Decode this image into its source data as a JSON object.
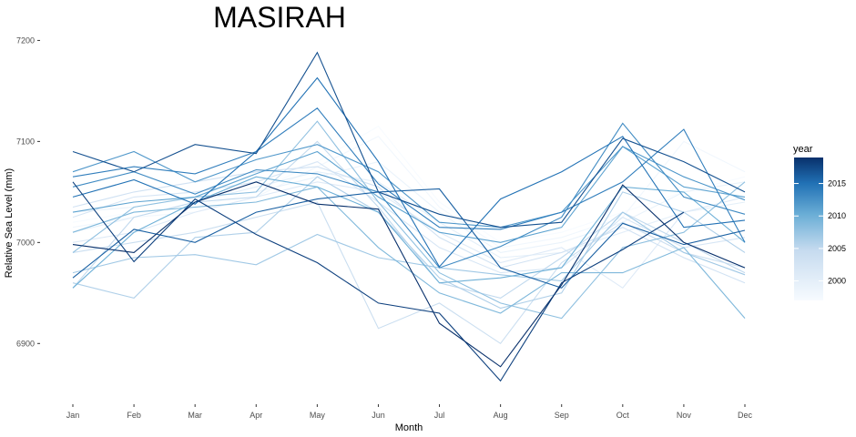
{
  "chart_data": {
    "type": "line",
    "title": "MASIRAH",
    "xlabel": "Month",
    "ylabel": "Relative Sea Level (mm)",
    "categories": [
      "Jan",
      "Feb",
      "Mar",
      "Apr",
      "May",
      "Jun",
      "Jul",
      "Aug",
      "Sep",
      "Oct",
      "Nov",
      "Dec"
    ],
    "ylim": [
      6848,
      7213
    ],
    "yticks": [
      6900,
      7000,
      7100,
      7200
    ],
    "grid": false,
    "legend": {
      "title": "year",
      "position": "right",
      "ticks": [
        2000,
        2005,
        2010,
        2015
      ],
      "range": [
        1997,
        2019
      ],
      "color_low": "#f7fbff",
      "color_high": "#08306b"
    },
    "series": [
      {
        "year": 1997,
        "values": [
          7020,
          7030,
          7035,
          7050,
          7080,
          7115,
          7040,
          7000,
          7010,
          7030,
          7050,
          7065
        ]
      },
      {
        "year": 1998,
        "values": [
          7015,
          7025,
          7030,
          7045,
          7075,
          7105,
          7035,
          6995,
          7005,
          7025,
          7100,
          7070
        ]
      },
      {
        "year": 1999,
        "values": [
          7030,
          7035,
          7045,
          7050,
          7065,
          7080,
          7030,
          6990,
          7000,
          7020,
          7050,
          7060
        ]
      },
      {
        "year": 2000,
        "values": [
          7010,
          7025,
          7040,
          7055,
          7070,
          7060,
          7020,
          6985,
          6990,
          7010,
          7030,
          7040
        ]
      },
      {
        "year": 2001,
        "values": [
          7000,
          7010,
          7030,
          7045,
          7060,
          7050,
          7010,
          6980,
          6995,
          6955,
          7030,
          7045
        ]
      },
      {
        "year": 2002,
        "values": [
          7025,
          7045,
          7050,
          7060,
          7080,
          7040,
          6995,
          6970,
          6975,
          7025,
          6995,
          7005
        ]
      },
      {
        "year": 2003,
        "values": [
          7035,
          7050,
          7060,
          7070,
          7075,
          7055,
          7005,
          6975,
          6990,
          7015,
          6985,
          6960
        ]
      },
      {
        "year": 2004,
        "values": [
          6990,
          7000,
          7010,
          7025,
          7040,
          6915,
          6940,
          6900,
          6980,
          7020,
          6990,
          6975
        ]
      },
      {
        "year": 2005,
        "values": [
          6955,
          7025,
          7040,
          7045,
          7100,
          7035,
          6960,
          6945,
          6985,
          7030,
          7000,
          6970
        ]
      },
      {
        "year": 2006,
        "values": [
          6960,
          6945,
          7005,
          7010,
          7065,
          7030,
          6965,
          6935,
          6950,
          7050,
          7030,
          6990
        ]
      },
      {
        "year": 2007,
        "values": [
          6970,
          6985,
          6988,
          6978,
          7008,
          6985,
          6975,
          6968,
          6962,
          7030,
          6990,
          6968
        ]
      },
      {
        "year": 2008,
        "values": [
          6990,
          7035,
          7045,
          7050,
          7120,
          7040,
          6970,
          6940,
          6925,
          6995,
          7010,
          7060
        ]
      },
      {
        "year": 2009,
        "values": [
          7010,
          7030,
          7035,
          7040,
          7055,
          6995,
          6950,
          6930,
          6970,
          6970,
          6995,
          6925
        ]
      },
      {
        "year": 2010,
        "values": [
          6955,
          7010,
          7040,
          7065,
          7055,
          7030,
          6960,
          6965,
          6975,
          7055,
          7050,
          7000
        ]
      },
      {
        "year": 2011,
        "values": [
          7030,
          7040,
          7045,
          7068,
          7090,
          7045,
          7010,
          7000,
          7015,
          7095,
          7055,
          7045
        ]
      },
      {
        "year": 2012,
        "values": [
          7070,
          7090,
          7060,
          7082,
          7097,
          7070,
          7020,
          7015,
          7030,
          7095,
          7065,
          7042
        ]
      },
      {
        "year": 2013,
        "values": [
          7055,
          7070,
          7048,
          7072,
          7068,
          7050,
          6975,
          6996,
          7025,
          7118,
          7045,
          7028
        ]
      },
      {
        "year": 2014,
        "values": [
          7065,
          7075,
          7068,
          7090,
          7133,
          7058,
          7015,
          7013,
          7030,
          7060,
          7112,
          7000
        ]
      },
      {
        "year": 2015,
        "values": [
          7045,
          7062,
          7038,
          7090,
          7163,
          7080,
          6976,
          7043,
          7070,
          7105,
          7015,
          7022
        ]
      },
      {
        "year": 2016,
        "values": [
          6965,
          7013,
          7000,
          7030,
          7043,
          7050,
          7053,
          6975,
          6955,
          7019,
          6998,
          7012
        ]
      },
      {
        "year": 2017,
        "values": [
          7090,
          7070,
          7097,
          7088,
          7188,
          7050,
          7028,
          7015,
          7020,
          7103,
          7080,
          7050
        ]
      },
      {
        "year": 2018,
        "values": [
          7060,
          6981,
          7043,
          7008,
          6980,
          6940,
          6930,
          6863,
          6960,
          6993,
          7030,
          null
        ]
      },
      {
        "year": 2019,
        "values": [
          6998,
          6990,
          7040,
          7060,
          7038,
          7033,
          6920,
          6877,
          6958,
          7057,
          7000,
          6975
        ]
      }
    ]
  }
}
